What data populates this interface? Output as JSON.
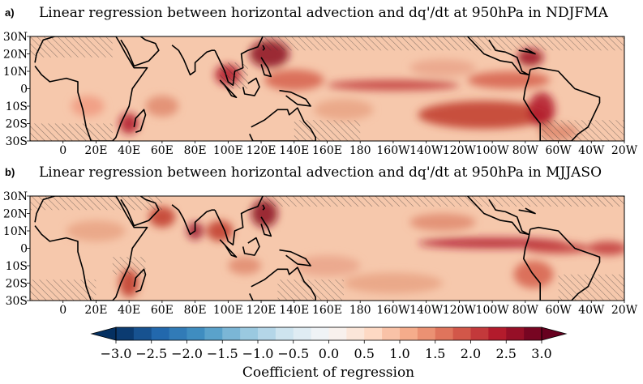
{
  "chart_data": [
    {
      "type": "heatmap",
      "panel_letter": "a)",
      "title": "Linear regression between horizontal advection and dq'/dt at 950hPa in NDJFMA",
      "x_ticks": [
        "0",
        "20E",
        "40E",
        "60E",
        "80E",
        "100E",
        "120E",
        "140E",
        "160E",
        "180",
        "160W",
        "140W",
        "120W",
        "100W",
        "80W",
        "60W",
        "40W",
        "20W"
      ],
      "y_ticks": [
        "30N",
        "20N",
        "10N",
        "0",
        "10S",
        "20S",
        "30S"
      ],
      "xlim": [
        "20W",
        "20W"
      ],
      "ylim": [
        "30S",
        "30N"
      ],
      "value_range": [
        -3.0,
        3.0
      ],
      "grid": false
    },
    {
      "type": "heatmap",
      "panel_letter": "b)",
      "title": "Linear regression between horizontal advection and dq'/dt at 950hPa in MJJASO",
      "x_ticks": [
        "0",
        "20E",
        "40E",
        "60E",
        "80E",
        "100E",
        "120E",
        "140E",
        "160E",
        "180",
        "160W",
        "140W",
        "120W",
        "100W",
        "80W",
        "60W",
        "40W",
        "20W"
      ],
      "y_ticks": [
        "30N",
        "20N",
        "10N",
        "0",
        "10S",
        "20S",
        "30S"
      ],
      "xlim": [
        "20W",
        "20W"
      ],
      "ylim": [
        "30S",
        "30N"
      ],
      "value_range": [
        -3.0,
        3.0
      ],
      "grid": false
    }
  ],
  "colorbar": {
    "label": "Coefficient of regression",
    "ticks": [
      "−3.0",
      "−2.5",
      "−2.0",
      "−1.5",
      "−1.0",
      "−0.5",
      "0.0",
      "0.5",
      "1.0",
      "1.5",
      "2.0",
      "2.5",
      "3.0"
    ],
    "range": [
      -3.0,
      3.0
    ],
    "extend": "both",
    "colormap": [
      "#053061",
      "#2166ac",
      "#4393c3",
      "#92c5de",
      "#d1e5f0",
      "#f7f7f7",
      "#fddbc7",
      "#f4a582",
      "#d6604d",
      "#b2182b",
      "#67001f"
    ]
  }
}
